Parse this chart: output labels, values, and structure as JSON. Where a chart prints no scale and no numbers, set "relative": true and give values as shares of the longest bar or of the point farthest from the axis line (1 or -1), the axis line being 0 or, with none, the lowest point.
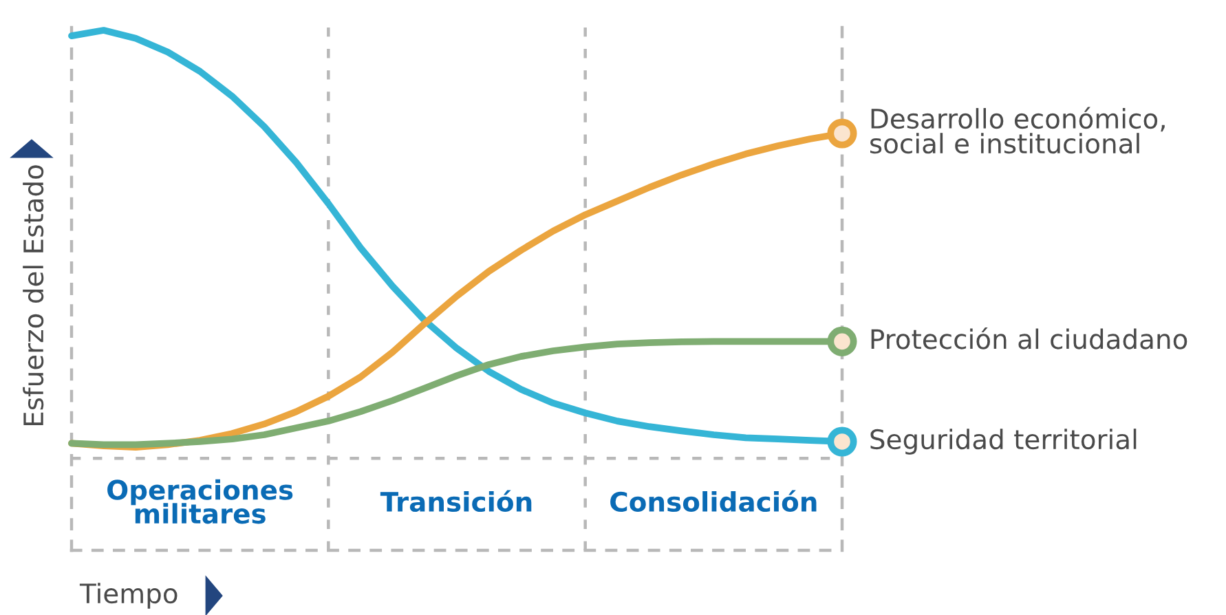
{
  "chart_data": {
    "type": "line",
    "relative": true,
    "xlabel": "Tiempo",
    "ylabel": "Esfuerzo del Estado",
    "categories": [
      null,
      null,
      null,
      null,
      null,
      null,
      null,
      null,
      null,
      null,
      null,
      null,
      null,
      null,
      null,
      null,
      null,
      null,
      null,
      null,
      null,
      null,
      null,
      null,
      null
    ],
    "line_style": "solid",
    "legend": "right",
    "annotations": [
      "Operaciones militares",
      "Transición",
      "Consolidación"
    ],
    "series": [
      {
        "name": "Seguridad territorial",
        "color": "#35b5d6",
        "values": [
          0.987,
          1,
          0.981,
          0.949,
          0.904,
          0.846,
          0.775,
          0.691,
          0.595,
          0.492,
          0.402,
          0.322,
          0.257,
          0.203,
          0.161,
          0.129,
          0.106,
          0.087,
          0.074,
          0.064,
          0.055,
          0.048,
          0.045,
          0.042,
          0.039
        ]
      },
      {
        "name": "Desarrollo económico,\nsocial e institucional",
        "color": "#eba53f",
        "values": [
          0.035,
          0.029,
          0.026,
          0.032,
          0.042,
          0.058,
          0.08,
          0.109,
          0.145,
          0.19,
          0.248,
          0.315,
          0.379,
          0.437,
          0.486,
          0.531,
          0.569,
          0.601,
          0.633,
          0.662,
          0.688,
          0.711,
          0.73,
          0.746,
          0.759
        ]
      },
      {
        "name": "Protección al ciudadano",
        "color": "#7fad72",
        "values": [
          0.035,
          0.032,
          0.032,
          0.035,
          0.039,
          0.045,
          0.055,
          0.071,
          0.087,
          0.109,
          0.135,
          0.164,
          0.193,
          0.219,
          0.238,
          0.251,
          0.26,
          0.267,
          0.27,
          0.272,
          0.273,
          0.273,
          0.273,
          0.273,
          0.273
        ]
      }
    ]
  }
}
